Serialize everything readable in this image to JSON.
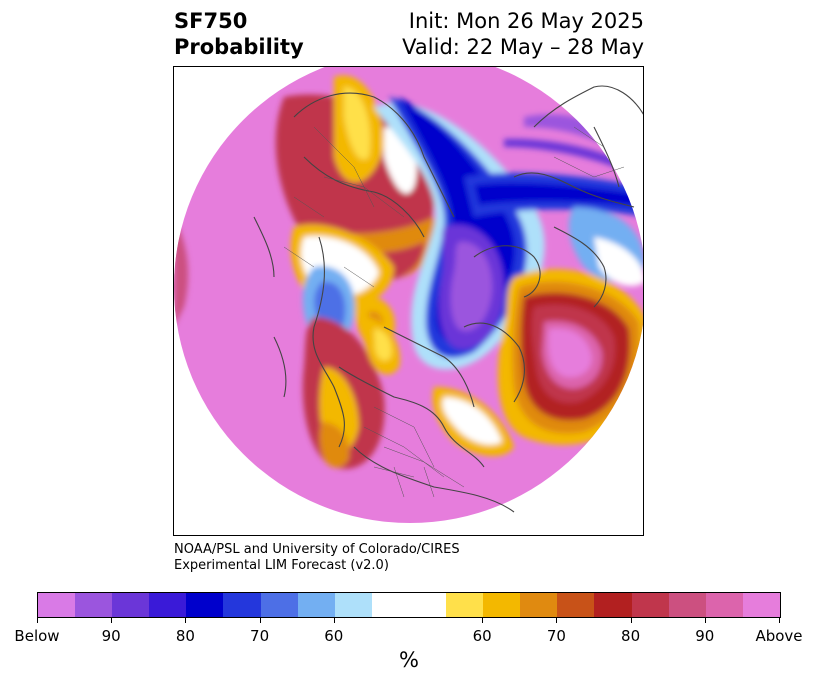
{
  "title": {
    "left_line1": "SF750",
    "left_line2": "Probability",
    "right_line1": "Init: Mon 26 May 2025",
    "right_line2": "Valid: 22 May – 28 May"
  },
  "credit": {
    "line1": "NOAA/PSL and University of Colorado/CIRES",
    "line2": "Experimental LIM Forecast (v2.0)"
  },
  "map": {
    "projection": "north polar stereographic",
    "features": [
      "coastlines",
      "country borders",
      "state borders"
    ]
  },
  "colorbar": {
    "unit": "%",
    "colors": [
      "#d97ae6",
      "#9b55de",
      "#6b36d8",
      "#3a1ad8",
      "#0000cc",
      "#2437dc",
      "#4d6fe6",
      "#73aff2",
      "#aee0fa",
      "#ffffff",
      "#ffe04a",
      "#f3b800",
      "#e08a10",
      "#c85218",
      "#b22020",
      "#c0364c",
      "#cc5080",
      "#dc64ac",
      "#e67ddc"
    ],
    "tick_labels": [
      "Below",
      "90",
      "80",
      "70",
      "60",
      "60",
      "70",
      "80",
      "90",
      "Above"
    ]
  }
}
